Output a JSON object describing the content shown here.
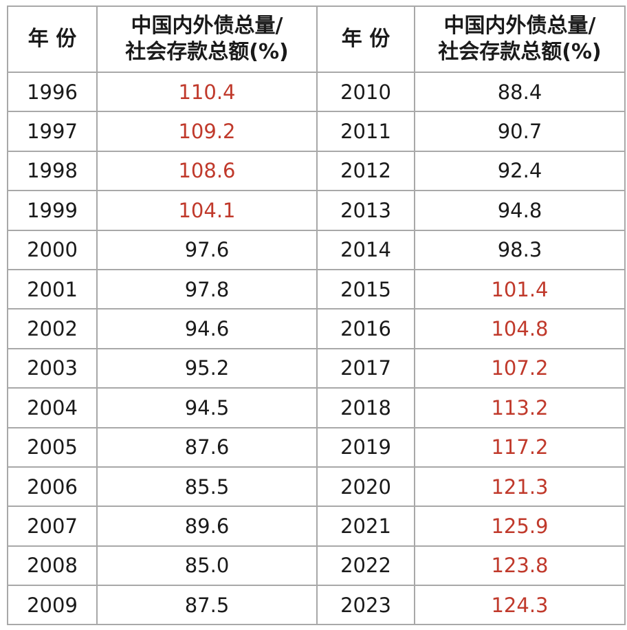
{
  "table": {
    "header": {
      "year": "年 份",
      "ratio_lines": [
        "中国内外债总量/",
        "社会存款总额(%)"
      ]
    },
    "rows": [
      {
        "year": "1996",
        "ratio": "110.4",
        "color": "#c0392b"
      },
      {
        "year": "1997",
        "ratio": "109.2",
        "color": "#c0392b"
      },
      {
        "year": "1998",
        "ratio": "108.6",
        "color": "#c0392b"
      },
      {
        "year": "1999",
        "ratio": "104.1",
        "color": "#c0392b"
      },
      {
        "year": "2000",
        "ratio": "97.6",
        "color": "#1a1a1a"
      },
      {
        "year": "2001",
        "ratio": "97.8",
        "color": "#1a1a1a"
      },
      {
        "year": "2002",
        "ratio": "94.6",
        "color": "#1a1a1a"
      },
      {
        "year": "2003",
        "ratio": "95.2",
        "color": "#1a1a1a"
      },
      {
        "year": "2004",
        "ratio": "94.5",
        "color": "#1a1a1a"
      },
      {
        "year": "2005",
        "ratio": "87.6",
        "color": "#1a1a1a"
      },
      {
        "year": "2006",
        "ratio": "85.5",
        "color": "#1a1a1a"
      },
      {
        "year": "2007",
        "ratio": "89.6",
        "color": "#1a1a1a"
      },
      {
        "year": "2008",
        "ratio": "85.0",
        "color": "#1a1a1a"
      },
      {
        "year": "2009",
        "ratio": "87.5",
        "color": "#1a1a1a"
      },
      {
        "year": "2010",
        "ratio": "88.4",
        "color": "#1a1a1a"
      },
      {
        "year": "2011",
        "ratio": "90.7",
        "color": "#1a1a1a"
      },
      {
        "year": "2012",
        "ratio": "92.4",
        "color": "#1a1a1a"
      },
      {
        "year": "2013",
        "ratio": "94.8",
        "color": "#1a1a1a"
      },
      {
        "year": "2014",
        "ratio": "98.3",
        "color": "#1a1a1a"
      },
      {
        "year": "2015",
        "ratio": "101.4",
        "color": "#c0392b"
      },
      {
        "year": "2016",
        "ratio": "104.8",
        "color": "#c0392b"
      },
      {
        "year": "2017",
        "ratio": "107.2",
        "color": "#c0392b"
      },
      {
        "year": "2018",
        "ratio": "113.2",
        "color": "#c0392b"
      },
      {
        "year": "2019",
        "ratio": "117.2",
        "color": "#c0392b"
      },
      {
        "year": "2020",
        "ratio": "121.3",
        "color": "#c0392b"
      },
      {
        "year": "2021",
        "ratio": "125.9",
        "color": "#c0392b"
      },
      {
        "year": "2022",
        "ratio": "123.8",
        "color": "#c0392b"
      },
      {
        "year": "2023",
        "ratio": "124.3",
        "color": "#c0392b"
      }
    ]
  }
}
